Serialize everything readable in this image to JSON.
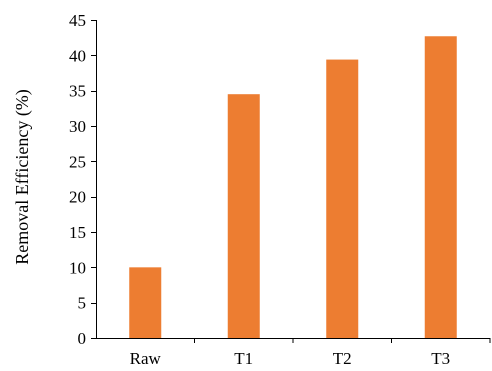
{
  "chart_data": {
    "type": "bar",
    "title": "",
    "xlabel": "",
    "ylabel": "Removal Efficiency (%)",
    "categories": [
      "Raw",
      "T1",
      "T2",
      "T3"
    ],
    "values": [
      10,
      34.5,
      39.4,
      42.7
    ],
    "ylim": [
      0,
      45
    ],
    "yticks": [
      0,
      5,
      10,
      15,
      20,
      25,
      30,
      35,
      40,
      45
    ],
    "grid": false,
    "legend": "none",
    "bar_color": "#ED7D31"
  }
}
